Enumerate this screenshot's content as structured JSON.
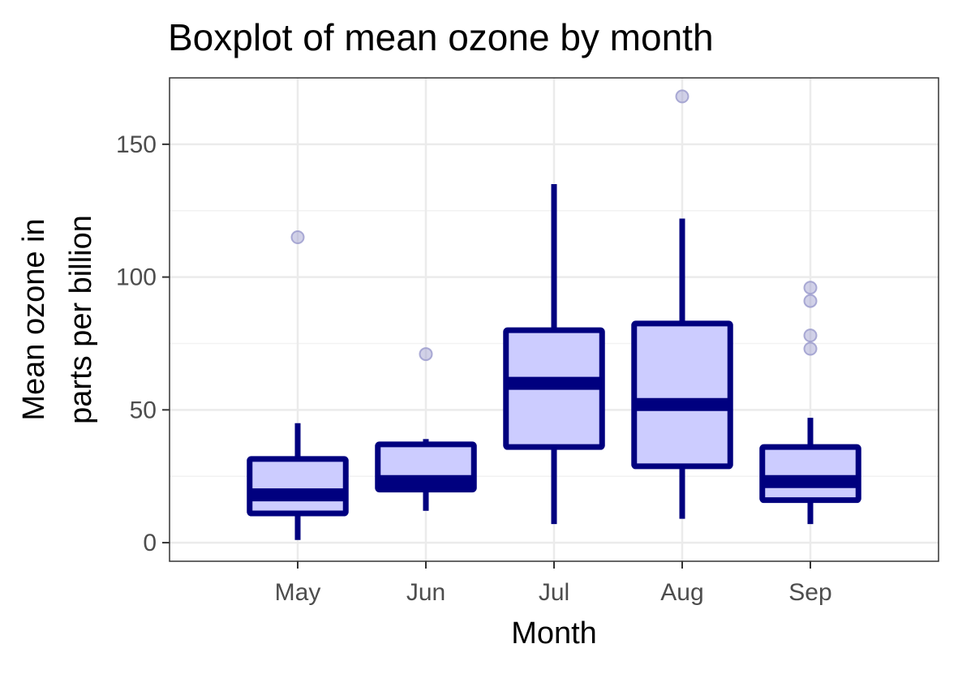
{
  "chart_data": {
    "type": "boxplot",
    "title": "Boxplot of mean ozone by month",
    "xlabel": "Month",
    "ylabel_lines": [
      "Mean ozone in",
      "parts per billion"
    ],
    "categories": [
      "May",
      "Jun",
      "Jul",
      "Aug",
      "Sep"
    ],
    "yticks": [
      0,
      50,
      100,
      150
    ],
    "ylim": [
      -7,
      175
    ],
    "grid": true,
    "legend": "none",
    "colors": {
      "box_fill": "#ccccff",
      "box_stroke": "#00007f",
      "outlier": "#9999cc",
      "grid_major": "#ebebeb",
      "grid_minor": "#f2f2f2",
      "panel_border": "#333333"
    },
    "boxes": [
      {
        "category": "May",
        "min": 1,
        "q1": 11,
        "median": 18,
        "q3": 31.5,
        "max": 45,
        "outliers": [
          115
        ]
      },
      {
        "category": "Jun",
        "min": 12,
        "q1": 20,
        "median": 23,
        "q3": 37,
        "max": 39,
        "outliers": [
          71
        ]
      },
      {
        "category": "Jul",
        "min": 7,
        "q1": 36,
        "median": 60,
        "q3": 80,
        "max": 135,
        "outliers": []
      },
      {
        "category": "Aug",
        "min": 9,
        "q1": 28.75,
        "median": 52,
        "q3": 82.5,
        "max": 122,
        "outliers": [
          168
        ]
      },
      {
        "category": "Sep",
        "min": 7,
        "q1": 16,
        "median": 23,
        "q3": 36,
        "max": 47,
        "outliers": [
          96,
          91,
          78,
          73
        ]
      }
    ]
  }
}
